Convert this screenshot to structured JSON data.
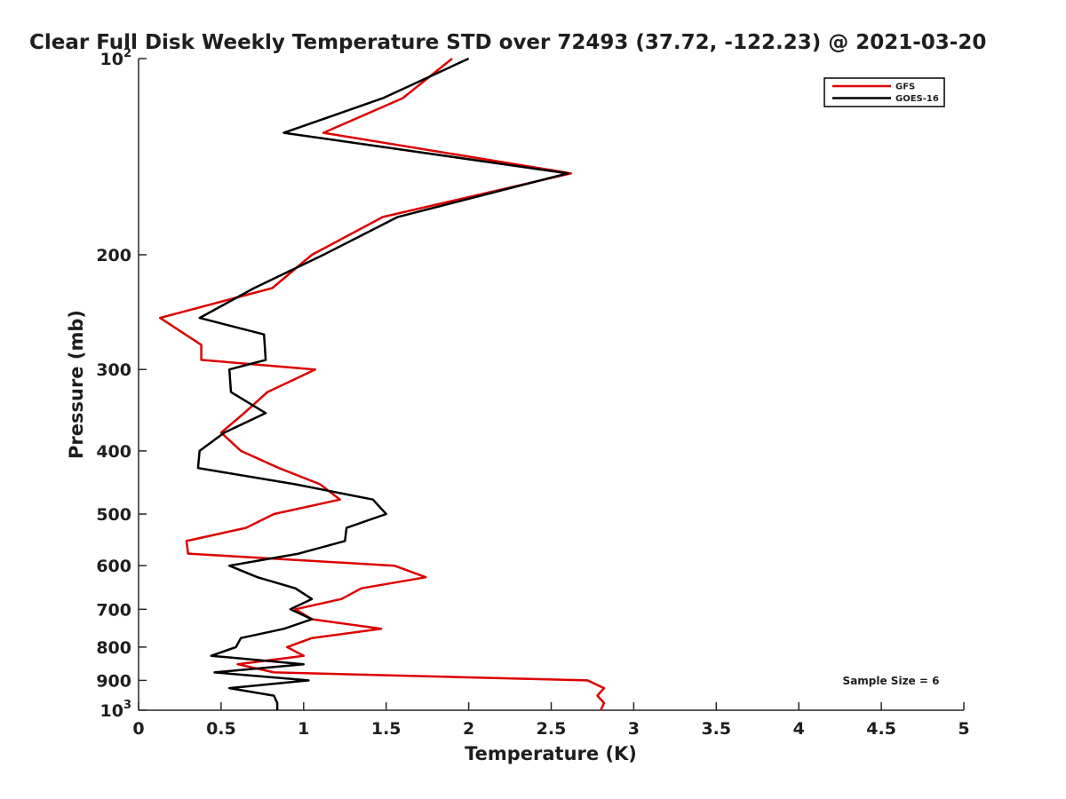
{
  "chart_data": {
    "type": "line",
    "title": "Clear Full Disk Weekly Temperature STD over 72493 (37.72, -122.23) @ 2021-03-20",
    "xlabel": "Temperature (K)",
    "ylabel": "Pressure (mb)",
    "xlim": [
      0,
      5
    ],
    "ylim": [
      100,
      1000
    ],
    "y_scale": "log",
    "y_reversed": true,
    "grid": false,
    "legend_position": "top-right",
    "x_ticks": [
      {
        "value": 0,
        "label": "0"
      },
      {
        "value": 0.5,
        "label": "0.5"
      },
      {
        "value": 1,
        "label": "1"
      },
      {
        "value": 1.5,
        "label": "1.5"
      },
      {
        "value": 2,
        "label": "2"
      },
      {
        "value": 2.5,
        "label": "2.5"
      },
      {
        "value": 3,
        "label": "3"
      },
      {
        "value": 3.5,
        "label": "3.5"
      },
      {
        "value": 4,
        "label": "4"
      },
      {
        "value": 4.5,
        "label": "4.5"
      },
      {
        "value": 5,
        "label": "5"
      }
    ],
    "y_ticks": [
      {
        "value": 100,
        "base": "10",
        "exp": "2"
      },
      {
        "value": 200,
        "label": "200"
      },
      {
        "value": 300,
        "label": "300"
      },
      {
        "value": 400,
        "label": "400"
      },
      {
        "value": 500,
        "label": "500"
      },
      {
        "value": 600,
        "label": "600"
      },
      {
        "value": 700,
        "label": "700"
      },
      {
        "value": 800,
        "label": "800"
      },
      {
        "value": 900,
        "label": "900"
      },
      {
        "value": 1000,
        "base": "10",
        "exp": "3"
      }
    ],
    "series": [
      {
        "name": "GFS",
        "color": "#dd0000",
        "points": [
          {
            "p": 100,
            "t": 1.9
          },
          {
            "p": 115,
            "t": 1.6
          },
          {
            "p": 130,
            "t": 1.12
          },
          {
            "p": 150,
            "t": 2.62
          },
          {
            "p": 175,
            "t": 1.48
          },
          {
            "p": 200,
            "t": 1.05
          },
          {
            "p": 225,
            "t": 0.81
          },
          {
            "p": 250,
            "t": 0.13
          },
          {
            "p": 275,
            "t": 0.38
          },
          {
            "p": 290,
            "t": 0.38
          },
          {
            "p": 300,
            "t": 1.07
          },
          {
            "p": 325,
            "t": 0.78
          },
          {
            "p": 350,
            "t": 0.64
          },
          {
            "p": 375,
            "t": 0.5
          },
          {
            "p": 400,
            "t": 0.62
          },
          {
            "p": 425,
            "t": 0.85
          },
          {
            "p": 450,
            "t": 1.1
          },
          {
            "p": 475,
            "t": 1.22
          },
          {
            "p": 500,
            "t": 0.82
          },
          {
            "p": 525,
            "t": 0.65
          },
          {
            "p": 550,
            "t": 0.29
          },
          {
            "p": 575,
            "t": 0.3
          },
          {
            "p": 600,
            "t": 1.55
          },
          {
            "p": 625,
            "t": 1.74
          },
          {
            "p": 650,
            "t": 1.35
          },
          {
            "p": 675,
            "t": 1.23
          },
          {
            "p": 700,
            "t": 0.95
          },
          {
            "p": 725,
            "t": 1.05
          },
          {
            "p": 750,
            "t": 1.47
          },
          {
            "p": 775,
            "t": 1.05
          },
          {
            "p": 800,
            "t": 0.9
          },
          {
            "p": 825,
            "t": 1.0
          },
          {
            "p": 850,
            "t": 0.6
          },
          {
            "p": 875,
            "t": 0.82
          },
          {
            "p": 900,
            "t": 2.72
          },
          {
            "p": 925,
            "t": 2.82
          },
          {
            "p": 950,
            "t": 2.78
          },
          {
            "p": 975,
            "t": 2.82
          },
          {
            "p": 1000,
            "t": 2.8
          }
        ]
      },
      {
        "name": "GOES-16",
        "color": "#000000",
        "points": [
          {
            "p": 100,
            "t": 2.0
          },
          {
            "p": 115,
            "t": 1.48
          },
          {
            "p": 130,
            "t": 0.88
          },
          {
            "p": 150,
            "t": 2.6
          },
          {
            "p": 175,
            "t": 1.57
          },
          {
            "p": 200,
            "t": 1.12
          },
          {
            "p": 225,
            "t": 0.7
          },
          {
            "p": 250,
            "t": 0.37
          },
          {
            "p": 265,
            "t": 0.76
          },
          {
            "p": 290,
            "t": 0.77
          },
          {
            "p": 300,
            "t": 0.55
          },
          {
            "p": 325,
            "t": 0.56
          },
          {
            "p": 350,
            "t": 0.77
          },
          {
            "p": 375,
            "t": 0.52
          },
          {
            "p": 400,
            "t": 0.37
          },
          {
            "p": 425,
            "t": 0.36
          },
          {
            "p": 450,
            "t": 0.95
          },
          {
            "p": 475,
            "t": 1.42
          },
          {
            "p": 500,
            "t": 1.5
          },
          {
            "p": 525,
            "t": 1.26
          },
          {
            "p": 550,
            "t": 1.25
          },
          {
            "p": 575,
            "t": 0.97
          },
          {
            "p": 600,
            "t": 0.55
          },
          {
            "p": 625,
            "t": 0.72
          },
          {
            "p": 650,
            "t": 0.95
          },
          {
            "p": 675,
            "t": 1.05
          },
          {
            "p": 700,
            "t": 0.92
          },
          {
            "p": 725,
            "t": 1.05
          },
          {
            "p": 750,
            "t": 0.88
          },
          {
            "p": 775,
            "t": 0.62
          },
          {
            "p": 800,
            "t": 0.59
          },
          {
            "p": 825,
            "t": 0.44
          },
          {
            "p": 850,
            "t": 1.0
          },
          {
            "p": 875,
            "t": 0.46
          },
          {
            "p": 900,
            "t": 1.03
          },
          {
            "p": 925,
            "t": 0.55
          },
          {
            "p": 950,
            "t": 0.82
          },
          {
            "p": 975,
            "t": 0.84
          },
          {
            "p": 1000,
            "t": 0.84
          }
        ]
      }
    ],
    "annotation": "Sample Size = 6"
  }
}
